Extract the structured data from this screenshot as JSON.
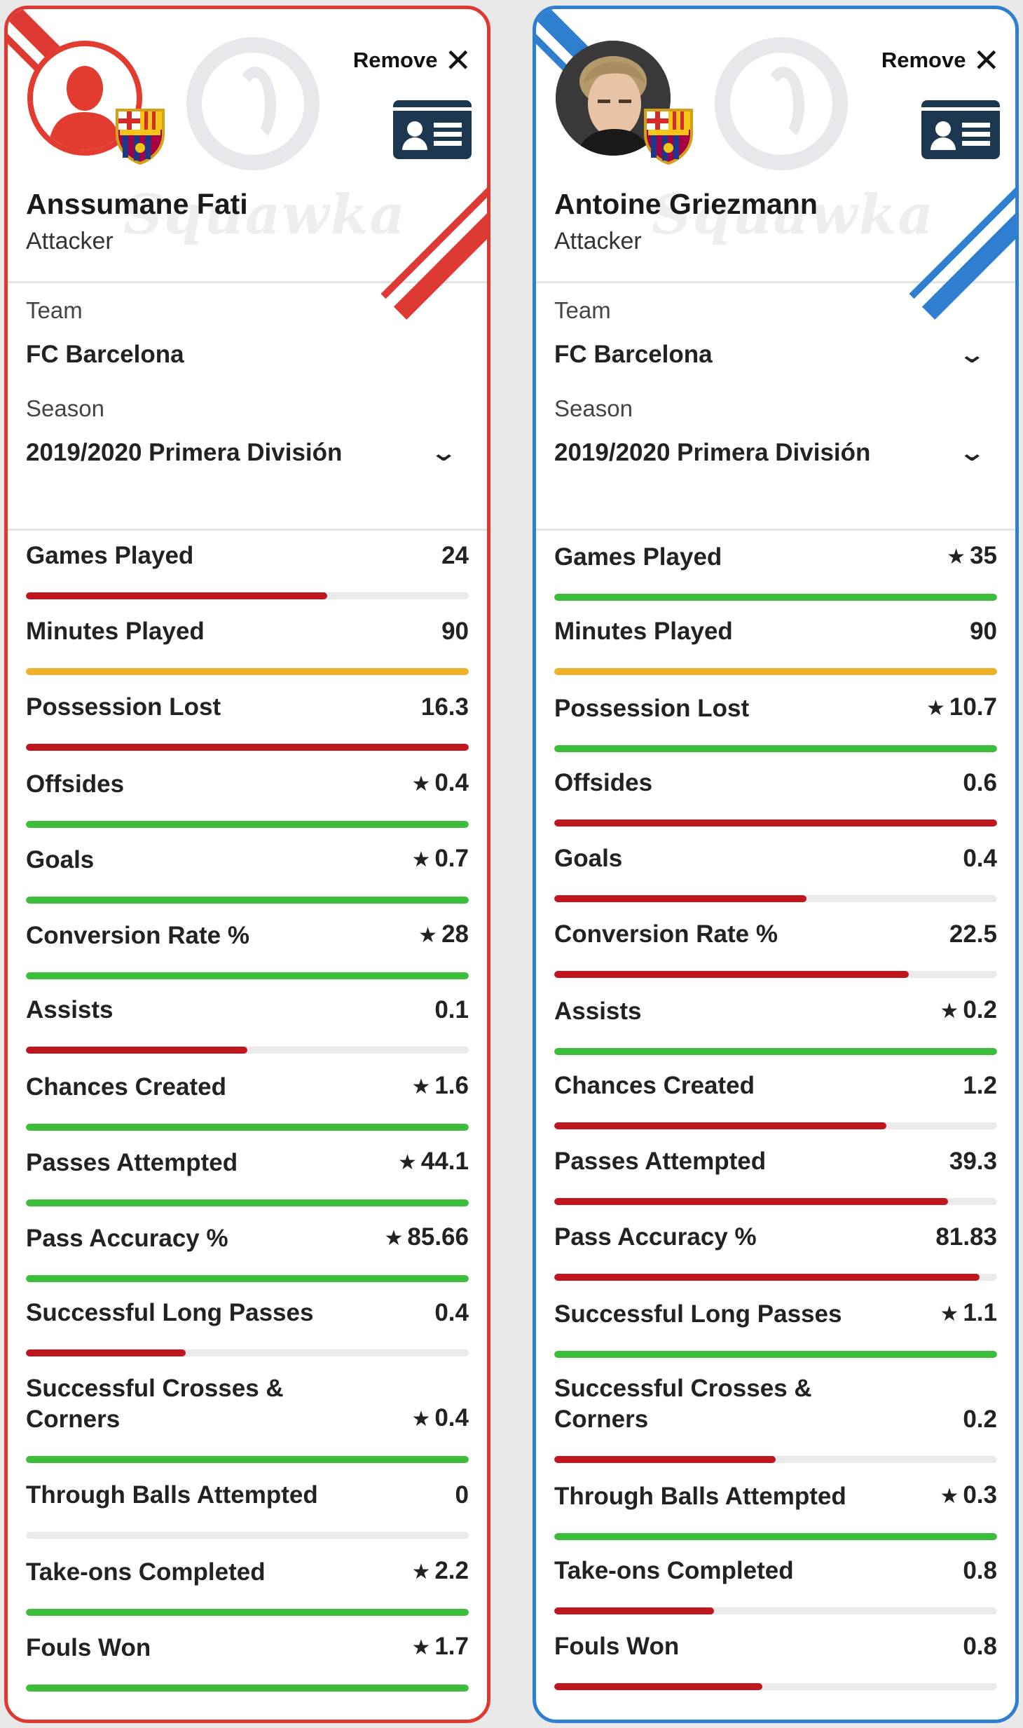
{
  "colors": {
    "good": "#3cbd3c",
    "bad": "#c0161d",
    "mid": "#f0b12a",
    "left_accent": "#de3a34",
    "right_accent": "#2f7fd0"
  },
  "cards": [
    {
      "side": "left",
      "remove_label": "Remove",
      "name": "Anssumane Fati",
      "position": "Attacker",
      "watermark": "Squawka",
      "team_label": "Team",
      "team_value": "FC Barcelona",
      "season_label": "Season",
      "season_value": "2019/2020 Primera División",
      "stats": [
        {
          "label": "Games Played",
          "value": "24",
          "star": false,
          "fill": 0.68,
          "color": "bad"
        },
        {
          "label": "Minutes Played",
          "value": "90",
          "star": false,
          "fill": 1.0,
          "color": "mid"
        },
        {
          "label": "Possession Lost",
          "value": "16.3",
          "star": false,
          "fill": 1.0,
          "color": "bad"
        },
        {
          "label": "Offsides",
          "value": "0.4",
          "star": true,
          "fill": 1.0,
          "color": "good"
        },
        {
          "label": "Goals",
          "value": "0.7",
          "star": true,
          "fill": 1.0,
          "color": "good"
        },
        {
          "label": "Conversion Rate %",
          "value": "28",
          "star": true,
          "fill": 1.0,
          "color": "good"
        },
        {
          "label": "Assists",
          "value": "0.1",
          "star": false,
          "fill": 0.5,
          "color": "bad"
        },
        {
          "label": "Chances Created",
          "value": "1.6",
          "star": true,
          "fill": 1.0,
          "color": "good"
        },
        {
          "label": "Passes Attempted",
          "value": "44.1",
          "star": true,
          "fill": 1.0,
          "color": "good"
        },
        {
          "label": "Pass Accuracy %",
          "value": "85.66",
          "star": true,
          "fill": 1.0,
          "color": "good"
        },
        {
          "label": "Successful Long Passes",
          "value": "0.4",
          "star": false,
          "fill": 0.36,
          "color": "bad"
        },
        {
          "label": "Successful Crosses & Corners",
          "value": "0.4",
          "star": true,
          "fill": 1.0,
          "color": "good"
        },
        {
          "label": "Through Balls Attempted",
          "value": "0",
          "star": false,
          "fill": 0.0,
          "color": "bad"
        },
        {
          "label": "Take-ons Completed",
          "value": "2.2",
          "star": true,
          "fill": 1.0,
          "color": "good"
        },
        {
          "label": "Fouls Won",
          "value": "1.7",
          "star": true,
          "fill": 1.0,
          "color": "good"
        }
      ]
    },
    {
      "side": "right",
      "remove_label": "Remove",
      "name": "Antoine Griezmann",
      "position": "Attacker",
      "watermark": "Squawka",
      "team_label": "Team",
      "team_value": "FC Barcelona",
      "season_label": "Season",
      "season_value": "2019/2020 Primera División",
      "stats": [
        {
          "label": "Games Played",
          "value": "35",
          "star": true,
          "fill": 1.0,
          "color": "good"
        },
        {
          "label": "Minutes Played",
          "value": "90",
          "star": false,
          "fill": 1.0,
          "color": "mid"
        },
        {
          "label": "Possession Lost",
          "value": "10.7",
          "star": true,
          "fill": 1.0,
          "color": "good"
        },
        {
          "label": "Offsides",
          "value": "0.6",
          "star": false,
          "fill": 1.0,
          "color": "bad"
        },
        {
          "label": "Goals",
          "value": "0.4",
          "star": false,
          "fill": 0.57,
          "color": "bad"
        },
        {
          "label": "Conversion Rate %",
          "value": "22.5",
          "star": false,
          "fill": 0.8,
          "color": "bad"
        },
        {
          "label": "Assists",
          "value": "0.2",
          "star": true,
          "fill": 1.0,
          "color": "good"
        },
        {
          "label": "Chances Created",
          "value": "1.2",
          "star": false,
          "fill": 0.75,
          "color": "bad"
        },
        {
          "label": "Passes Attempted",
          "value": "39.3",
          "star": false,
          "fill": 0.89,
          "color": "bad"
        },
        {
          "label": "Pass Accuracy %",
          "value": "81.83",
          "star": false,
          "fill": 0.96,
          "color": "bad"
        },
        {
          "label": "Successful Long Passes",
          "value": "1.1",
          "star": true,
          "fill": 1.0,
          "color": "good"
        },
        {
          "label": "Successful Crosses & Corners",
          "value": "0.2",
          "star": false,
          "fill": 0.5,
          "color": "bad"
        },
        {
          "label": "Through Balls Attempted",
          "value": "0.3",
          "star": true,
          "fill": 1.0,
          "color": "good"
        },
        {
          "label": "Take-ons Completed",
          "value": "0.8",
          "star": false,
          "fill": 0.36,
          "color": "bad"
        },
        {
          "label": "Fouls Won",
          "value": "0.8",
          "star": false,
          "fill": 0.47,
          "color": "bad"
        }
      ]
    }
  ]
}
